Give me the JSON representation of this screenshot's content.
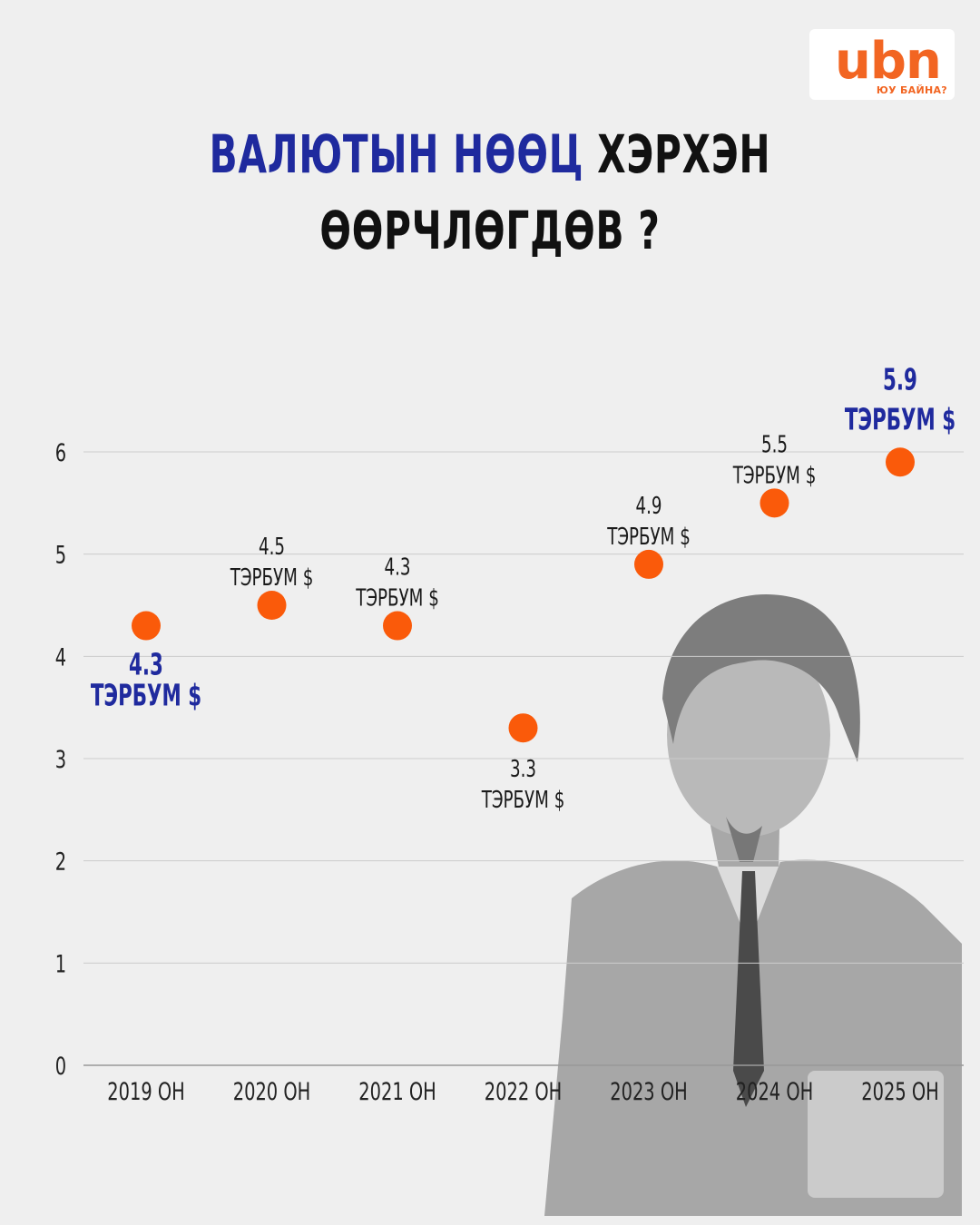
{
  "logo": {
    "mark": "ubn",
    "tagline": "ЮУ БАЙНА?"
  },
  "title": {
    "accent": "ВАЛЮТЫН НӨӨЦ",
    "line1_rest": " ХЭРХЭН",
    "line2": "ӨӨРЧЛӨГДӨВ ?"
  },
  "colors": {
    "accent": "#1f2a9e",
    "marker": "#fa5a0a",
    "logo": "#f26522",
    "grid": "#cccccc"
  },
  "chart_data": {
    "type": "scatter",
    "categories": [
      "2019 ОН",
      "2020 ОН",
      "2021 ОН",
      "2022 ОН",
      "2023 ОН",
      "2024 ОН",
      "2025 ОН"
    ],
    "values": [
      4.3,
      4.5,
      4.3,
      3.3,
      4.9,
      5.5,
      5.9
    ],
    "value_labels": [
      "4.3",
      "4.5",
      "4.3",
      "3.3",
      "4.9",
      "5.5",
      "5.9"
    ],
    "unit_label": "ТЭРБУМ $",
    "highlighted": [
      0,
      6
    ],
    "yticks": [
      "0",
      "1",
      "2",
      "3",
      "4",
      "5",
      "6"
    ],
    "ylim": [
      0,
      6
    ],
    "grid": true,
    "legend": "none"
  }
}
